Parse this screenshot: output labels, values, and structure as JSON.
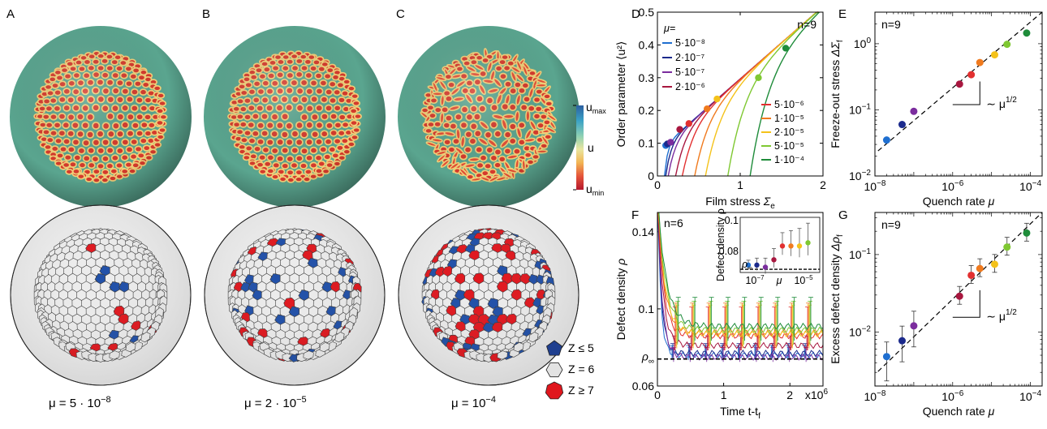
{
  "panel_labels": [
    "A",
    "B",
    "C",
    "D",
    "E",
    "F",
    "G"
  ],
  "colorbar": {
    "top": "u",
    "top_sub": "max",
    "mid": "u",
    "bottom": "u",
    "bottom_sub": "min",
    "colors": [
      "#2c5fa0",
      "#3aa1c5",
      "#8cd0b4",
      "#e9e6a0",
      "#f2b453",
      "#e4543a",
      "#b5182d"
    ]
  },
  "spheres_top": [
    {
      "label": "A",
      "pattern": "hex",
      "seed": 3
    },
    {
      "label": "B",
      "pattern": "hex2",
      "seed": 7
    },
    {
      "label": "C",
      "pattern": "stripe",
      "seed": 11
    }
  ],
  "spheres_bottom": [
    {
      "caption": "μ = 5 · 10",
      "caption_exp": "−8",
      "defects": 14,
      "seed": 5
    },
    {
      "caption": "μ = 2 · 10",
      "caption_exp": "−5",
      "defects": 44,
      "seed": 9
    },
    {
      "caption": "μ = 10",
      "caption_exp": "−4",
      "defects": 92,
      "seed": 13
    }
  ],
  "defect_legend": [
    {
      "label": "Z ≤ 5",
      "color": "#1f3f8f"
    },
    {
      "label": "Z = 6",
      "color": "#e3e3e3"
    },
    {
      "label": "Z ≥ 7",
      "color": "#e0161d"
    }
  ],
  "chart_data": [
    {
      "id": "D",
      "type": "line",
      "xlabel": "Film stress",
      "xlabel_sym": "Σ",
      "xlabel_sub": "e",
      "ylabel": "Order parameter",
      "ylabel_sym": "⟨u²⟩",
      "xlim": [
        0,
        2
      ],
      "ylim": [
        0,
        0.5
      ],
      "xticks": [
        "0",
        "1",
        "2"
      ],
      "yticks": [
        "0",
        "0.1",
        "0.2",
        "0.3",
        "0.4",
        "0.5"
      ],
      "annotation": "n=9",
      "legend_title": "μ=",
      "series": [
        {
          "name": "5·10⁻⁸",
          "color": "#1f6fd0",
          "onset": 0.085,
          "dot": [
            0.1,
            0.093
          ]
        },
        {
          "name": "2·10⁻⁷",
          "color": "#1b2a8c",
          "onset": 0.1,
          "dot": [
            0.12,
            0.098
          ]
        },
        {
          "name": "5·10⁻⁷",
          "color": "#7b2d9e",
          "onset": 0.13,
          "dot": [
            0.16,
            0.103
          ]
        },
        {
          "name": "2·10⁻⁶",
          "color": "#a8173f",
          "onset": 0.22,
          "dot": [
            0.27,
            0.142
          ]
        },
        {
          "name": "5·10⁻⁶",
          "color": "#e23030",
          "onset": 0.3,
          "dot": [
            0.38,
            0.16
          ]
        },
        {
          "name": "1·10⁻⁵",
          "color": "#f07a1e",
          "onset": 0.45,
          "dot": [
            0.6,
            0.205
          ]
        },
        {
          "name": "2·10⁻⁵",
          "color": "#f4c21a",
          "onset": 0.58,
          "dot": [
            0.72,
            0.235
          ]
        },
        {
          "name": "5·10⁻⁵",
          "color": "#7fc832",
          "onset": 0.85,
          "dot": [
            1.22,
            0.3
          ]
        },
        {
          "name": "1·10⁻⁴",
          "color": "#1e8c3a",
          "onset": 1.12,
          "dot": [
            1.55,
            0.39
          ]
        }
      ]
    },
    {
      "id": "E",
      "type": "scatter",
      "xlabel": "Quench rate",
      "xlabel_sym": "μ",
      "ylabel": "Freeze-out stress",
      "ylabel_sym": "ΔΣ",
      "ylabel_sub": "f",
      "log": true,
      "xlim": [
        1e-08,
        0.0002
      ],
      "ylim": [
        0.01,
        3
      ],
      "xticks": [
        {
          "v": 1e-08,
          "t": "10",
          "e": "−8"
        },
        {
          "v": 1e-06,
          "t": "10",
          "e": "−6"
        },
        {
          "v": 0.0001,
          "t": "10",
          "e": "−4"
        }
      ],
      "yticks": [
        {
          "v": 0.01,
          "t": "10",
          "e": "−2"
        },
        {
          "v": 0.1,
          "t": "10",
          "e": "−1"
        },
        {
          "v": 1,
          "t": "10",
          "e": "0"
        }
      ],
      "annotation": "n=9",
      "slope_label": "∼ μ",
      "slope_exp": "1/2",
      "x": [
        2e-08,
        5e-08,
        1e-07,
        1.5e-06,
        3e-06,
        5e-06,
        1.2e-05,
        2.5e-05,
        8e-05
      ],
      "y": [
        0.035,
        0.06,
        0.095,
        0.245,
        0.34,
        0.52,
        0.68,
        0.98,
        1.45
      ]
    },
    {
      "id": "F",
      "type": "line",
      "xlabel": "Time t-t",
      "xlabel_sub": "f",
      "ylabel": "Defect density",
      "ylabel_sym": "ρ",
      "xlim": [
        0,
        2.5
      ],
      "ylim": [
        0.06,
        0.15
      ],
      "xticks": [
        "0",
        "1",
        "2"
      ],
      "x_multiplier": "x10",
      "x_multiplier_exp": "6",
      "yticks": [
        {
          "v": 0.06,
          "t": "0.06"
        },
        {
          "v": 0.1,
          "t": "0.1"
        },
        {
          "v": 0.14,
          "t": "0.14"
        }
      ],
      "annotation": "n=6",
      "rho_inf": "ρ",
      "rho_inf_sub": "∞",
      "rho_inf_value": 0.074,
      "plateaus": [
        0.076,
        0.077,
        0.075,
        0.081,
        0.086,
        0.088,
        0.087,
        0.089,
        0.091
      ],
      "inset": {
        "ylabel": "Defect density ρ",
        "ytick": "0.1",
        "ytick2": "0.08",
        "rho_inf": "ρ",
        "rho_inf_sub": "∞",
        "xlabel": "μ",
        "xticks": [
          {
            "t": "10",
            "e": "−7"
          },
          {
            "t": "10",
            "e": "−5"
          }
        ],
        "y": [
          0.0775,
          0.0775,
          0.0765,
          0.08,
          0.0865,
          0.0865,
          0.0865,
          0.088
        ]
      }
    },
    {
      "id": "G",
      "type": "scatter",
      "xlabel": "Quench rate",
      "xlabel_sym": "μ",
      "ylabel": "Excess defect density",
      "ylabel_sym": "Δρ",
      "ylabel_sub": "f",
      "log": true,
      "xlim": [
        1e-08,
        0.0002
      ],
      "ylim": [
        0.002,
        0.35
      ],
      "xticks": [
        {
          "v": 1e-08,
          "t": "10",
          "e": "−8"
        },
        {
          "v": 1e-06,
          "t": "10",
          "e": "−6"
        },
        {
          "v": 0.0001,
          "t": "10",
          "e": "−4"
        }
      ],
      "yticks": [
        {
          "v": 0.01,
          "t": "10",
          "e": "−2"
        },
        {
          "v": 0.1,
          "t": "10",
          "e": "−1"
        }
      ],
      "annotation": "n=9",
      "slope_label": "∼ μ",
      "slope_exp": "1/2",
      "x": [
        2e-08,
        5e-08,
        1e-07,
        1.5e-06,
        3e-06,
        5e-06,
        1.2e-05,
        2.5e-05,
        8e-05
      ],
      "y": [
        0.0048,
        0.0077,
        0.012,
        0.029,
        0.054,
        0.066,
        0.075,
        0.125,
        0.19
      ]
    }
  ]
}
